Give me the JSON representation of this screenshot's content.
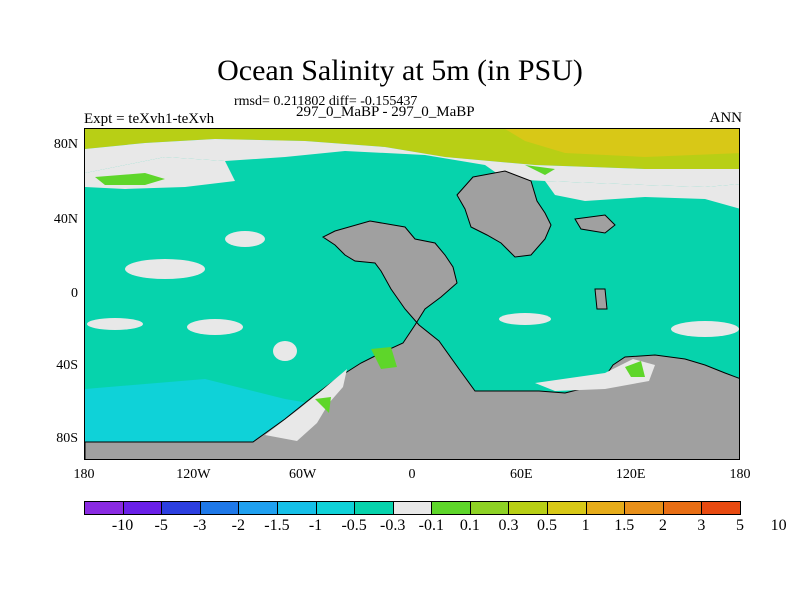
{
  "title": "Ocean Salinity at 5m (in PSU)",
  "stats_line": "rmsd= 0.211802 diff= -0.155437",
  "case_line": "297_0_MaBP - 297_0_MaBP",
  "expt_label": "Expt = teXvh1-teXvh",
  "season_label": "ANN",
  "lat_ticks": [
    "80N",
    "40N",
    "0",
    "40S",
    "80S"
  ],
  "lon_ticks": [
    "180",
    "120W",
    "60W",
    "0",
    "60E",
    "120E",
    "180"
  ],
  "colorbar": {
    "labels": [
      "-10",
      "-5",
      "-3",
      "-2",
      "-1.5",
      "-1",
      "-0.5",
      "-0.3",
      "-0.1",
      "0.1",
      "0.3",
      "0.5",
      "1",
      "1.5",
      "2",
      "3",
      "5",
      "10"
    ],
    "colors": [
      "#8a2be2",
      "#6a20e8",
      "#2c3fe0",
      "#1e78e8",
      "#1fa0f0",
      "#15c0e8",
      "#0fd2d8",
      "#06d3ac",
      "#e8e8e8",
      "#5ed62a",
      "#8ed225",
      "#b8cf15",
      "#d8c817",
      "#e6ac1a",
      "#e8901a",
      "#e86e14",
      "#e84a10"
    ]
  },
  "colors": {
    "ocean_base": "#06d3ac",
    "land": "#a0a0a0",
    "near_zero": "#e8e8e8",
    "positive_small": "#5ed62a",
    "positive_mid": "#b8cf15",
    "negative_small": "#0fd2d8"
  }
}
